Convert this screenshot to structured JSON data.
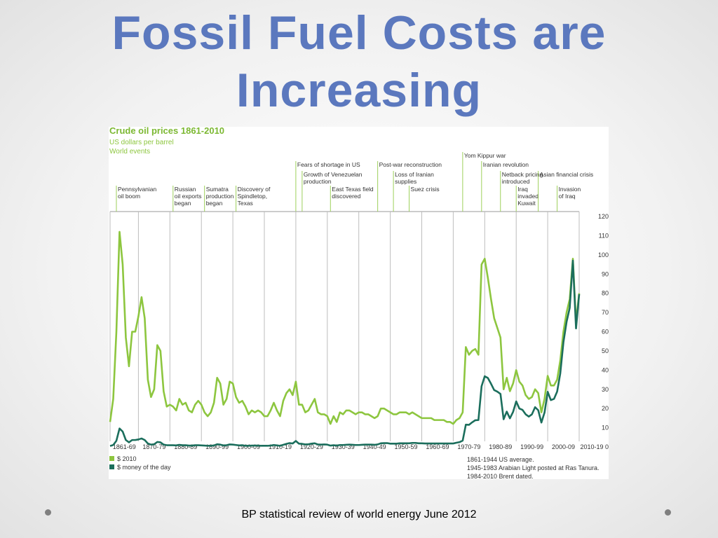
{
  "slide": {
    "title": "Fossil Fuel Costs are Increasing",
    "source": "BP statistical review of world energy June 2012"
  },
  "chart_data": {
    "type": "line",
    "title": "Crude oil prices 1861-2010",
    "subtitle": "US dollars per barrel",
    "events_heading": "World events",
    "x": [
      1861,
      1862,
      1863,
      1864,
      1865,
      1866,
      1867,
      1868,
      1869,
      1870,
      1871,
      1872,
      1873,
      1874,
      1875,
      1876,
      1877,
      1878,
      1879,
      1880,
      1881,
      1882,
      1883,
      1884,
      1885,
      1886,
      1887,
      1888,
      1889,
      1890,
      1891,
      1892,
      1893,
      1894,
      1895,
      1896,
      1897,
      1898,
      1899,
      1900,
      1901,
      1902,
      1903,
      1904,
      1905,
      1906,
      1907,
      1908,
      1909,
      1910,
      1911,
      1912,
      1913,
      1914,
      1915,
      1916,
      1917,
      1918,
      1919,
      1920,
      1921,
      1922,
      1923,
      1924,
      1925,
      1926,
      1927,
      1928,
      1929,
      1930,
      1931,
      1932,
      1933,
      1934,
      1935,
      1936,
      1937,
      1938,
      1939,
      1940,
      1941,
      1942,
      1943,
      1944,
      1945,
      1946,
      1947,
      1948,
      1949,
      1950,
      1951,
      1952,
      1953,
      1954,
      1955,
      1956,
      1957,
      1958,
      1959,
      1960,
      1961,
      1962,
      1963,
      1964,
      1965,
      1966,
      1967,
      1968,
      1969,
      1970,
      1971,
      1972,
      1973,
      1974,
      1975,
      1976,
      1977,
      1978,
      1979,
      1980,
      1981,
      1982,
      1983,
      1984,
      1985,
      1986,
      1987,
      1988,
      1989,
      1990,
      1991,
      1992,
      1993,
      1994,
      1995,
      1996,
      1997,
      1998,
      1999,
      2000,
      2001,
      2002,
      2003,
      2004,
      2005,
      2006,
      2007,
      2008,
      2009,
      2010
    ],
    "series": [
      {
        "name": "$ 2010",
        "color": "#8dc63f",
        "values": [
          13,
          25,
          60,
          112,
          95,
          57,
          42,
          60,
          60,
          68,
          78,
          67,
          35,
          26,
          30,
          53,
          50,
          29,
          21,
          22,
          21,
          19,
          25,
          22,
          23,
          19,
          18,
          22,
          24,
          22,
          18,
          16,
          18,
          23,
          36,
          33,
          22,
          25,
          34,
          33,
          26,
          23,
          24,
          21,
          17,
          19,
          18,
          19,
          18,
          16,
          16,
          19,
          23,
          19,
          16,
          24,
          28,
          30,
          27,
          34,
          22,
          22,
          18,
          19,
          22,
          25,
          18,
          17,
          17,
          16,
          12,
          16,
          13,
          18,
          17,
          19,
          19,
          18,
          17,
          18,
          18,
          17,
          17,
          16,
          15,
          16,
          20,
          20,
          19,
          18,
          17,
          17,
          18,
          18,
          18,
          17,
          18,
          17,
          16,
          15,
          15,
          15,
          15,
          14,
          14,
          14,
          14,
          13,
          13,
          12,
          14,
          15,
          18,
          52,
          48,
          50,
          51,
          48,
          95,
          98,
          88,
          77,
          67,
          62,
          57,
          30,
          36,
          29,
          33,
          40,
          34,
          32,
          27,
          25,
          26,
          30,
          28,
          18,
          25,
          37,
          32,
          32,
          35,
          45,
          60,
          70,
          77,
          98,
          65,
          80
        ]
      },
      {
        "name": "$ money of the day",
        "color": "#1b6e5c",
        "values": [
          0.5,
          1,
          3.2,
          9.6,
          8,
          3.6,
          2.4,
          3.6,
          3.6,
          3.9,
          4.4,
          3.6,
          1.8,
          1.2,
          1.4,
          2.6,
          2.4,
          1.2,
          0.9,
          0.9,
          0.9,
          0.8,
          1.1,
          0.9,
          0.9,
          0.7,
          0.7,
          0.9,
          0.9,
          0.8,
          0.7,
          0.6,
          0.6,
          0.8,
          1.4,
          1.2,
          0.8,
          0.9,
          1.3,
          1.2,
          1,
          0.8,
          0.9,
          0.6,
          0.6,
          0.7,
          0.7,
          0.7,
          0.6,
          0.6,
          0.6,
          0.7,
          1,
          0.8,
          0.6,
          1.1,
          1.6,
          2,
          1.8,
          3.1,
          1.7,
          1.6,
          1.3,
          1.4,
          1.7,
          1.9,
          1.3,
          1.2,
          1.3,
          1.2,
          0.7,
          0.9,
          0.7,
          1,
          1,
          1.1,
          1.2,
          1.1,
          1,
          1,
          1.1,
          1.2,
          1.2,
          1.2,
          1.1,
          1.3,
          1.9,
          2,
          2,
          1.7,
          1.7,
          1.7,
          1.9,
          1.9,
          1.9,
          1.9,
          2.1,
          2.1,
          1.9,
          1.9,
          1.8,
          1.8,
          1.8,
          1.8,
          1.8,
          1.8,
          1.8,
          1.8,
          1.8,
          1.8,
          2.2,
          2.5,
          3.3,
          11.6,
          11.5,
          12.8,
          13.9,
          14,
          31.6,
          36.8,
          35.9,
          32.9,
          29.6,
          28.8,
          27.6,
          14.4,
          18.4,
          14.9,
          18.2,
          23.7,
          20,
          19.3,
          17,
          15.8,
          17,
          20.7,
          19.1,
          12.7,
          17.9,
          28.7,
          24.4,
          25,
          28.8,
          38.3,
          54.5,
          65.1,
          72.4,
          97,
          61.7,
          79.5
        ]
      }
    ],
    "xlim": [
      1861,
      2010
    ],
    "xticks": [
      {
        "value": 1861,
        "label": "1861-69"
      },
      {
        "value": 1870,
        "label": "1870-79"
      },
      {
        "value": 1880,
        "label": "1880-89"
      },
      {
        "value": 1890,
        "label": "1890-99"
      },
      {
        "value": 1900,
        "label": "1900-09"
      },
      {
        "value": 1910,
        "label": "1910-19"
      },
      {
        "value": 1920,
        "label": "1920-29"
      },
      {
        "value": 1930,
        "label": "1930-39"
      },
      {
        "value": 1940,
        "label": "1940-49"
      },
      {
        "value": 1950,
        "label": "1950-59"
      },
      {
        "value": 1960,
        "label": "1960-69"
      },
      {
        "value": 1970,
        "label": "1970-79"
      },
      {
        "value": 1980,
        "label": "1980-89"
      },
      {
        "value": 1990,
        "label": "1990-99"
      },
      {
        "value": 2000,
        "label": "2000-09"
      },
      {
        "value": 2010,
        "label": "2010-19"
      }
    ],
    "ylim": [
      0,
      120
    ],
    "yticks": [
      0,
      10,
      20,
      30,
      40,
      50,
      60,
      70,
      80,
      90,
      100,
      110,
      120
    ],
    "grid": "x",
    "events": [
      {
        "x": 1863,
        "label": [
          "Pennsylvanian",
          "oil boom"
        ],
        "row": 3
      },
      {
        "x": 1881,
        "label": [
          "Russian",
          "oil exports",
          "began"
        ],
        "row": 3
      },
      {
        "x": 1891,
        "label": [
          "Sumatra",
          "production",
          "began"
        ],
        "row": 3
      },
      {
        "x": 1901,
        "label": [
          "Discovery of",
          "Spindletop,",
          "Texas"
        ],
        "row": 3
      },
      {
        "x": 1920,
        "label": [
          "Fears of shortage in US"
        ],
        "row": 1
      },
      {
        "x": 1922,
        "label": [
          "Growth of Venezuelan",
          "production"
        ],
        "row": 2
      },
      {
        "x": 1931,
        "label": [
          "East Texas field",
          "discovered"
        ],
        "row": 3
      },
      {
        "x": 1946,
        "label": [
          "Post-war reconstruction"
        ],
        "row": 1
      },
      {
        "x": 1951,
        "label": [
          "Loss of Iranian",
          "supplies"
        ],
        "row": 2
      },
      {
        "x": 1956,
        "label": [
          "Suez crisis"
        ],
        "row": 3
      },
      {
        "x": 1973,
        "label": [
          "Yom Kippur war"
        ],
        "row": 0
      },
      {
        "x": 1979,
        "label": [
          "Iranian revolution"
        ],
        "row": 1
      },
      {
        "x": 1985,
        "label": [
          "Netback pricing",
          "introduced"
        ],
        "row": 2
      },
      {
        "x": 1990,
        "label": [
          "Iraq",
          "invaded",
          "Kuwait"
        ],
        "row": 3
      },
      {
        "x": 1997,
        "label": [
          "Asian financial crisis"
        ],
        "row": 2
      },
      {
        "x": 2003,
        "label": [
          "Invasion",
          "of Iraq"
        ],
        "row": 3
      }
    ],
    "notes": [
      "1861-1944 US average.",
      "1945-1983 Arabian Light posted at Ras Tanura.",
      "1984-2010 Brent dated."
    ]
  }
}
